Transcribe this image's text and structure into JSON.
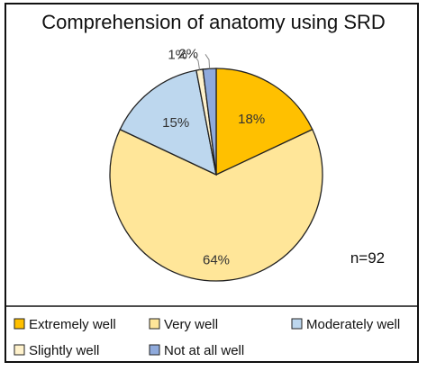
{
  "chart_data": {
    "type": "pie",
    "title": "Comprehension of anatomy using SRD",
    "annotation": "n=92",
    "legend_position": "bottom",
    "slices": [
      {
        "label": "Extremely well",
        "value": 18,
        "display": "18%",
        "color": "#FFC000"
      },
      {
        "label": "Very well",
        "value": 64,
        "display": "64%",
        "color": "#FFE699"
      },
      {
        "label": "Moderately well",
        "value": 15,
        "display": "15%",
        "color": "#BDD7EE"
      },
      {
        "label": "Slightly well",
        "value": 1,
        "display": "1%",
        "color": "#FFF2CC"
      },
      {
        "label": "Not at all well",
        "value": 2,
        "display": "2%",
        "color": "#8FAADC"
      }
    ]
  }
}
